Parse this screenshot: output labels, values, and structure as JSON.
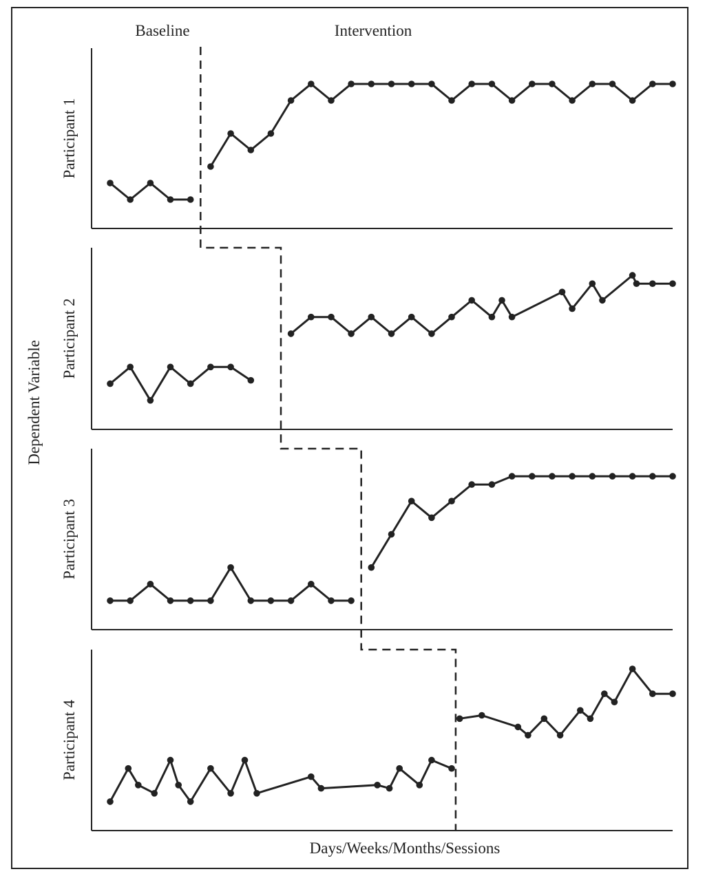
{
  "chart_data": {
    "type": "line",
    "subtype": "multiple-baseline",
    "phase_labels": [
      "Baseline",
      "Intervention"
    ],
    "ylabel": "Dependent Variable",
    "xlabel": "Days/Weeks/Months/Sessions",
    "grid": false,
    "legend": "none",
    "color": "#222222",
    "ylim": [
      0,
      9
    ],
    "xlim": [
      0,
      29
    ],
    "panels": [
      {
        "name": "Participant 1",
        "baseline": [
          [
            1,
            2
          ],
          [
            2,
            1
          ],
          [
            3,
            2
          ],
          [
            4,
            1
          ],
          [
            5,
            1
          ]
        ],
        "intervention": [
          [
            6,
            3
          ],
          [
            7,
            5
          ],
          [
            8,
            4
          ],
          [
            9,
            5
          ],
          [
            10,
            7
          ],
          [
            11,
            8
          ],
          [
            12,
            7
          ],
          [
            13,
            8
          ],
          [
            14,
            8
          ],
          [
            15,
            8
          ],
          [
            16,
            8
          ],
          [
            17,
            8
          ],
          [
            18,
            7
          ],
          [
            19,
            8
          ],
          [
            20,
            8
          ],
          [
            21,
            7
          ],
          [
            22,
            8
          ],
          [
            23,
            8
          ],
          [
            24,
            7
          ],
          [
            25,
            8
          ],
          [
            26,
            8
          ],
          [
            27,
            7
          ],
          [
            28,
            8
          ],
          [
            29,
            8
          ]
        ]
      },
      {
        "name": "Participant 2",
        "baseline": [
          [
            1,
            2
          ],
          [
            2,
            3
          ],
          [
            3,
            1
          ],
          [
            4,
            3
          ],
          [
            5,
            2
          ],
          [
            6,
            3
          ],
          [
            7,
            3
          ],
          [
            8,
            2.2
          ]
        ],
        "intervention": [
          [
            10,
            5
          ],
          [
            11,
            6
          ],
          [
            12,
            6
          ],
          [
            13,
            5
          ],
          [
            14,
            6
          ],
          [
            15,
            5
          ],
          [
            16,
            6
          ],
          [
            17,
            5
          ],
          [
            18,
            6
          ],
          [
            19,
            7
          ],
          [
            20,
            6
          ],
          [
            20.5,
            7
          ],
          [
            21,
            6
          ],
          [
            23.5,
            7.5
          ],
          [
            24,
            6.5
          ],
          [
            25,
            8
          ],
          [
            25.5,
            7
          ],
          [
            27,
            8.5
          ],
          [
            27.2,
            8
          ],
          [
            28,
            8
          ],
          [
            29,
            8
          ]
        ]
      },
      {
        "name": "Participant 3",
        "baseline": [
          [
            1,
            1
          ],
          [
            2,
            1
          ],
          [
            3,
            2
          ],
          [
            4,
            1
          ],
          [
            5,
            1
          ],
          [
            6,
            1
          ],
          [
            7,
            3
          ],
          [
            8,
            1
          ],
          [
            9,
            1
          ],
          [
            10,
            1
          ],
          [
            11,
            2
          ],
          [
            12,
            1
          ],
          [
            13,
            1
          ]
        ],
        "intervention": [
          [
            14,
            3
          ],
          [
            15,
            5
          ],
          [
            16,
            7
          ],
          [
            17,
            6
          ],
          [
            18,
            7
          ],
          [
            19,
            8
          ],
          [
            20,
            8
          ],
          [
            21,
            8.5
          ],
          [
            22,
            8.5
          ],
          [
            23,
            8.5
          ],
          [
            24,
            8.5
          ],
          [
            25,
            8.5
          ],
          [
            26,
            8.5
          ],
          [
            27,
            8.5
          ],
          [
            28,
            8.5
          ],
          [
            29,
            8.5
          ]
        ]
      },
      {
        "name": "Participant 4",
        "baseline": [
          [
            1,
            1
          ],
          [
            1.9,
            3
          ],
          [
            2.4,
            2
          ],
          [
            3.2,
            1.5
          ],
          [
            4,
            3.5
          ],
          [
            4.4,
            2
          ],
          [
            5,
            1
          ],
          [
            6,
            3
          ],
          [
            7,
            1.5
          ],
          [
            7.7,
            3.5
          ],
          [
            8.3,
            1.5
          ],
          [
            11,
            2.5
          ],
          [
            11.5,
            1.8
          ],
          [
            14.3,
            2
          ],
          [
            14.9,
            1.8
          ],
          [
            15.4,
            3
          ],
          [
            16.4,
            2
          ],
          [
            17,
            3.5
          ],
          [
            18,
            3
          ]
        ],
        "intervention": [
          [
            18.4,
            6
          ],
          [
            19.5,
            6.2
          ],
          [
            21.3,
            5.5
          ],
          [
            21.8,
            5
          ],
          [
            22.6,
            6
          ],
          [
            23.4,
            5
          ],
          [
            24.4,
            6.5
          ],
          [
            24.9,
            6
          ],
          [
            25.6,
            7.5
          ],
          [
            26.1,
            7
          ],
          [
            27,
            9
          ],
          [
            28,
            7.5
          ],
          [
            29,
            7.5
          ]
        ]
      }
    ],
    "phase_change_after": [
      5.5,
      9.5,
      13.5,
      18.2
    ]
  }
}
